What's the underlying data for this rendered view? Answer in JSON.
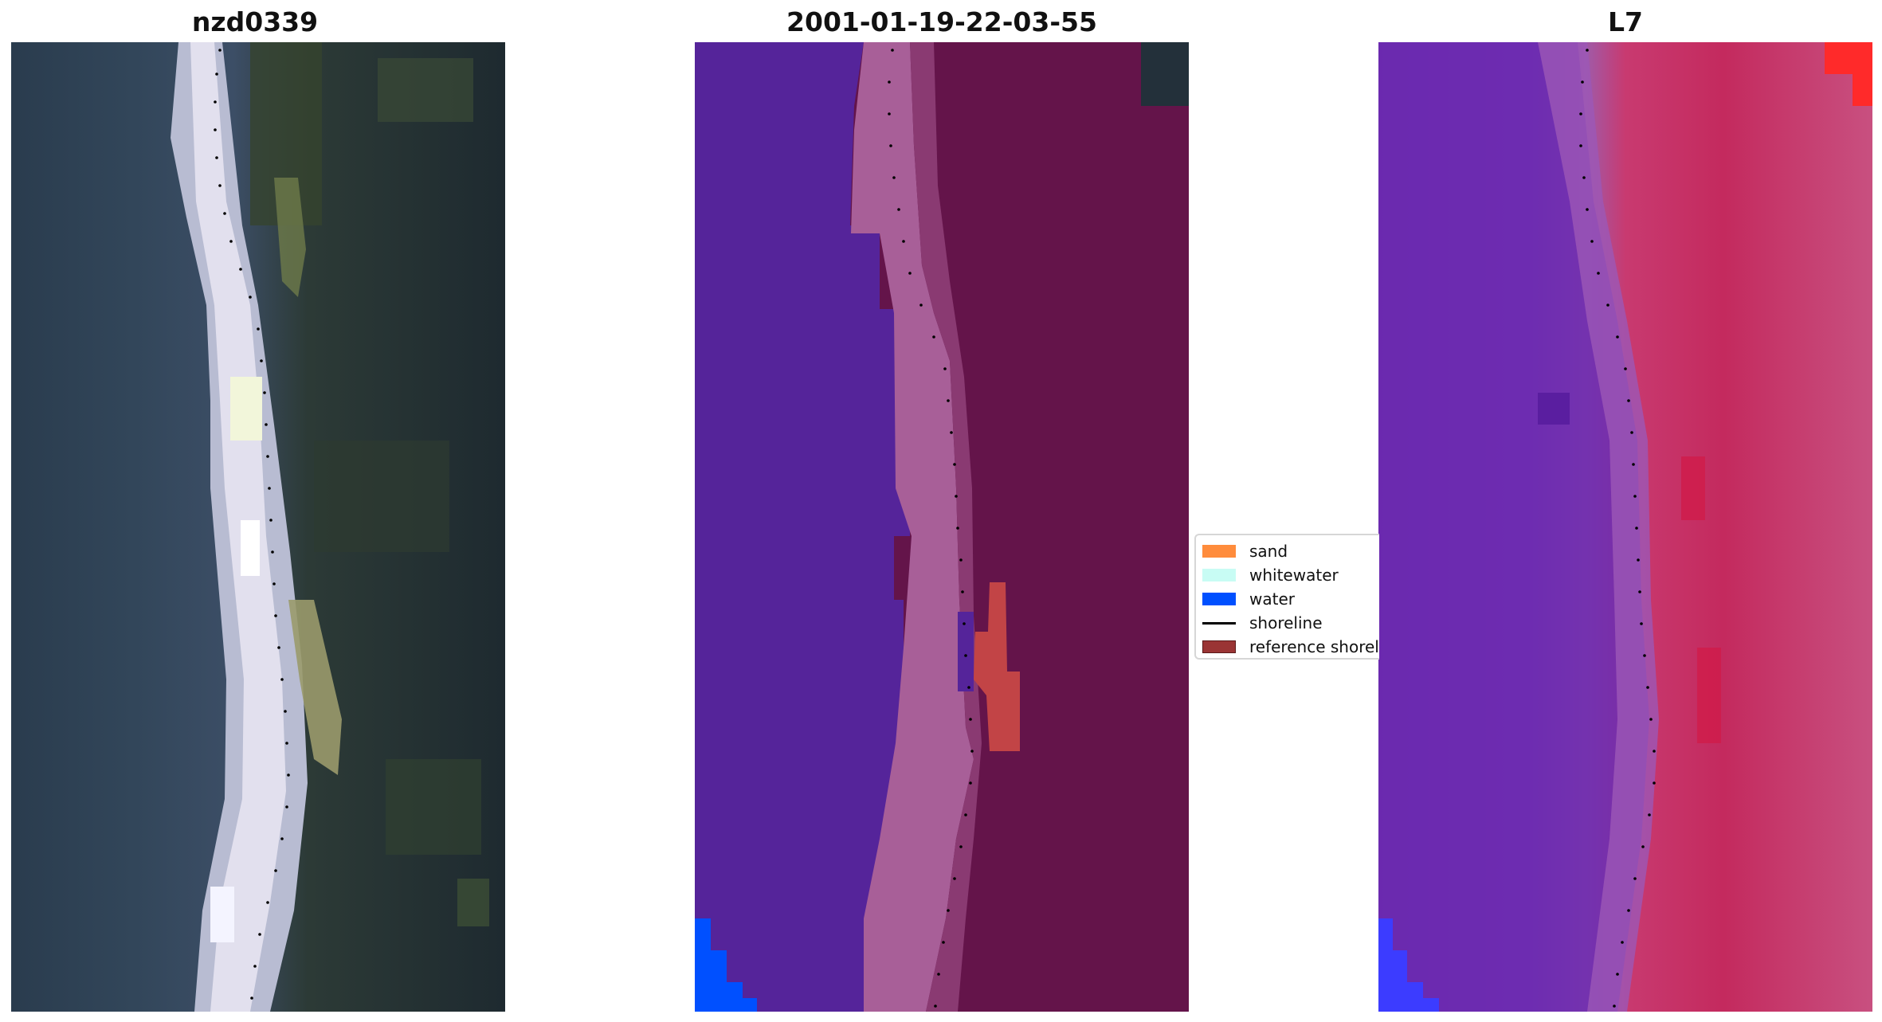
{
  "panels": [
    {
      "title": "nzd0339"
    },
    {
      "title": "2001-01-19-22-03-55"
    },
    {
      "title": "L7"
    }
  ],
  "legend": {
    "items": [
      {
        "label": "sand",
        "color": "#ff8c3c"
      },
      {
        "label": "whitewater",
        "color": "#c8fcf4"
      },
      {
        "label": "water",
        "color": "#0050ff"
      },
      {
        "label": "shoreline",
        "color": "#000000"
      },
      {
        "label": "reference shoreline",
        "color": "#9a3434"
      }
    ]
  },
  "colors": {
    "rgb_dark": "#283846",
    "rgb_vegetation": "#2e3f2e",
    "rgb_sand_bright": "#d8d4e6",
    "class_water": "#55249a",
    "class_sand_blend": "#a85f98",
    "class_land": "#64144a",
    "class_water_pure": "#0050ff",
    "class_red_patch": "#c24446",
    "l7_purple": "#6a28b0",
    "l7_magenta": "#c02a62",
    "l7_red": "#ff2a2a",
    "shoreline_dots": "#000000"
  }
}
